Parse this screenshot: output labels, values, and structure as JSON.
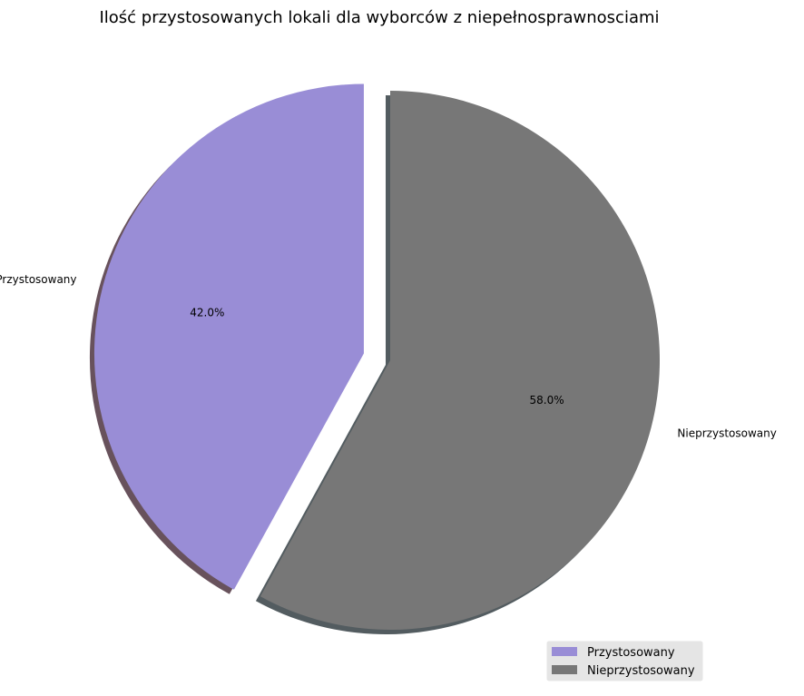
{
  "chart_data": {
    "type": "pie",
    "title": "Ilość przystosowanych lokali dla wyborców z niepełnosprawnosciami",
    "categories": [
      "Przystosowany",
      "Nieprzystosowany"
    ],
    "values": [
      42.0,
      58.0
    ],
    "percent_labels": [
      "42.0%",
      "58.0%"
    ],
    "colors": [
      "#998dd6",
      "#777777"
    ],
    "shadow": true,
    "exploded": "Przystosowany",
    "start_angle_deg": 90,
    "direction": "counterclockwise",
    "legend": {
      "position": "lower-right",
      "entries": [
        "Przystosowany",
        "Nieprzystosowany"
      ]
    }
  }
}
